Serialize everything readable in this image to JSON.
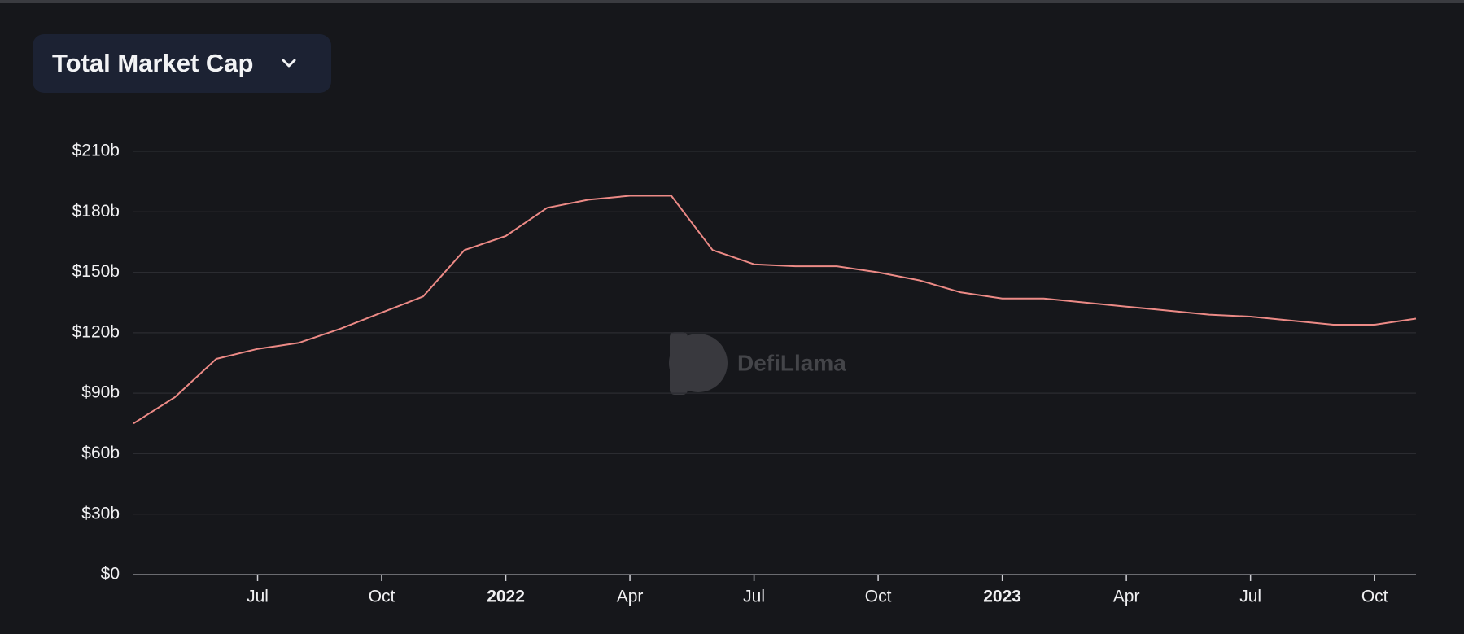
{
  "chart_data": {
    "type": "line",
    "title": "Total Market Cap",
    "watermark": "DefiLlama",
    "x": [
      "2021-04",
      "2021-05",
      "2021-06",
      "2021-07",
      "2021-08",
      "2021-09",
      "2021-10",
      "2021-11",
      "2021-12",
      "2022-01",
      "2022-02",
      "2022-03",
      "2022-04",
      "2022-05",
      "2022-06",
      "2022-07",
      "2022-08",
      "2022-09",
      "2022-10",
      "2022-11",
      "2022-12",
      "2023-01",
      "2023-02",
      "2023-03",
      "2023-04",
      "2023-05",
      "2023-06",
      "2023-07",
      "2023-08",
      "2023-09",
      "2023-10",
      "2023-11"
    ],
    "values": [
      75,
      88,
      107,
      112,
      115,
      122,
      130,
      138,
      161,
      168,
      182,
      186,
      188,
      188,
      161,
      154,
      153,
      153,
      150,
      146,
      140,
      137,
      137,
      135,
      133,
      131,
      129,
      128,
      126,
      124,
      124,
      127
    ],
    "color": "#ec8a86",
    "xlim": [
      "2021-04",
      "2023-11"
    ],
    "xticks": [
      {
        "value": "2021-07",
        "label": "Jul"
      },
      {
        "value": "2021-10",
        "label": "Oct"
      },
      {
        "value": "2022-01",
        "label": "2022"
      },
      {
        "value": "2022-04",
        "label": "Apr"
      },
      {
        "value": "2022-07",
        "label": "Jul"
      },
      {
        "value": "2022-10",
        "label": "Oct"
      },
      {
        "value": "2023-01",
        "label": "2023"
      },
      {
        "value": "2023-04",
        "label": "Apr"
      },
      {
        "value": "2023-07",
        "label": "Jul"
      },
      {
        "value": "2023-10",
        "label": "Oct"
      }
    ],
    "ylim": [
      0,
      210
    ],
    "yticks": [
      {
        "value": 0,
        "label": "$0"
      },
      {
        "value": 30,
        "label": "$30b"
      },
      {
        "value": 60,
        "label": "$60b"
      },
      {
        "value": 90,
        "label": "$90b"
      },
      {
        "value": 120,
        "label": "$120b"
      },
      {
        "value": 150,
        "label": "$150b"
      },
      {
        "value": 180,
        "label": "$180b"
      },
      {
        "value": 210,
        "label": "$210b"
      }
    ],
    "grid": true
  }
}
